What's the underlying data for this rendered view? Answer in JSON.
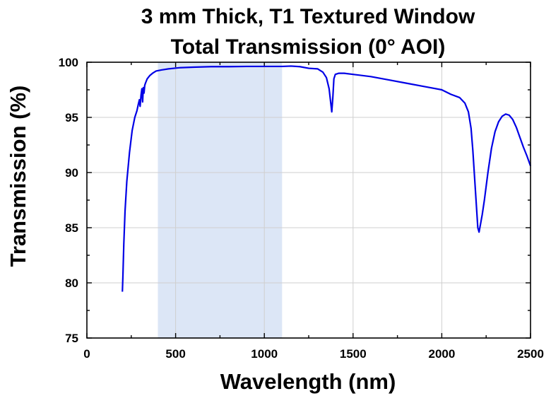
{
  "chart_data": {
    "type": "line",
    "title": "3 mm Thick, T1 Textured Window",
    "subtitle": "Total Transmission (0° AOI)",
    "xlabel": "Wavelength (nm)",
    "ylabel": "Transmission (%)",
    "xlim": [
      0,
      2500
    ],
    "ylim": [
      75,
      100
    ],
    "xticks": [
      0,
      500,
      1000,
      1500,
      2000,
      2500
    ],
    "yticks": [
      75,
      80,
      85,
      90,
      95,
      100
    ],
    "grid": true,
    "legend": "none",
    "highlight_band": {
      "x_start": 400,
      "x_end": 1100,
      "color": "#dce6f6"
    },
    "colors": {
      "line": "#0000e6",
      "grid": "#cfcfcf",
      "axis": "#000000"
    },
    "series": [
      {
        "x": [
          200,
          203,
          208,
          215,
          225,
          240,
          255,
          270,
          282,
          290,
          296,
          300,
          305,
          310,
          314,
          318,
          322,
          326,
          330,
          340,
          355,
          370,
          390,
          420,
          460,
          520,
          600,
          700,
          800,
          900,
          1000,
          1100,
          1150,
          1200,
          1250,
          1300,
          1330,
          1350,
          1365,
          1375,
          1380,
          1386,
          1392,
          1400,
          1420,
          1450,
          1500,
          1600,
          1700,
          1800,
          1900,
          2000,
          2050,
          2100,
          2130,
          2150,
          2165,
          2175,
          2185,
          2195,
          2203,
          2210,
          2218,
          2228,
          2240,
          2260,
          2280,
          2300,
          2320,
          2340,
          2360,
          2380,
          2400,
          2420,
          2440,
          2460,
          2480,
          2500
        ],
        "values": [
          79.2,
          80.6,
          83.5,
          86.5,
          89.2,
          91.8,
          93.8,
          95.0,
          95.6,
          96.2,
          96.6,
          96.0,
          97.0,
          97.6,
          96.4,
          97.7,
          97.2,
          97.9,
          98.1,
          98.5,
          98.8,
          99.0,
          99.2,
          99.3,
          99.4,
          99.5,
          99.55,
          99.6,
          99.6,
          99.62,
          99.62,
          99.62,
          99.65,
          99.6,
          99.45,
          99.4,
          99.1,
          98.6,
          97.6,
          96.2,
          95.5,
          96.8,
          98.5,
          98.9,
          99.0,
          99.0,
          98.9,
          98.7,
          98.4,
          98.1,
          97.8,
          97.5,
          97.1,
          96.8,
          96.3,
          95.5,
          94.0,
          92.0,
          89.5,
          87.0,
          85.0,
          84.6,
          85.3,
          86.2,
          87.5,
          90.0,
          92.2,
          93.7,
          94.6,
          95.1,
          95.3,
          95.2,
          94.8,
          94.1,
          93.2,
          92.3,
          91.5,
          90.6
        ]
      }
    ]
  }
}
